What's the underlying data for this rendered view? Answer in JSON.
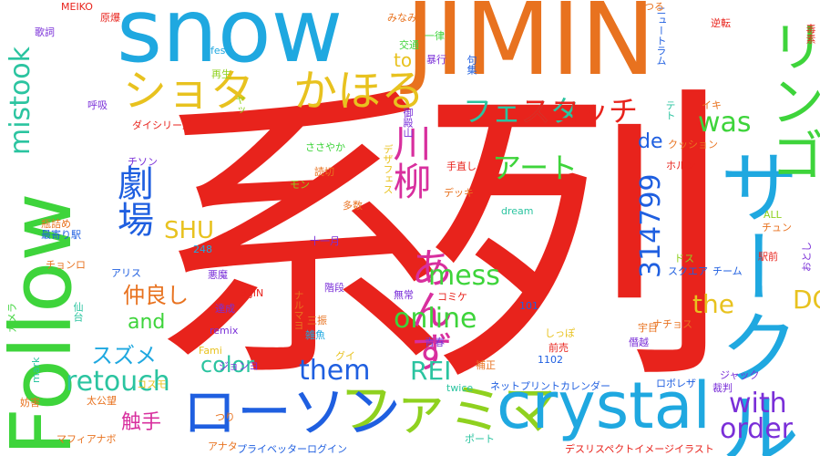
{
  "colors": {
    "red": "#e8231c",
    "orange": "#e8721f",
    "yellow": "#e8c21f",
    "lime": "#8fd11f",
    "green": "#3ed43b",
    "teal": "#2bc4a0",
    "cyan": "#1fa8e0",
    "blue": "#1f5fe0",
    "purple": "#7a2fd8",
    "magenta": "#d82f9e"
  },
  "words": [
    "系列",
    "Follow",
    "サークル",
    "snow",
    "JIMIN",
    "ファミマ",
    "crystal",
    "ローソン",
    "フェスタ",
    "リンゴ",
    "ショタ",
    "かほる",
    "川柳",
    "劇場",
    "アート",
    "あんず",
    "314799",
    "mistook",
    "retouch",
    "with",
    "order",
    "online",
    "them",
    "スコッチ",
    "mess",
    "was",
    "SHU",
    "仲良し",
    "スズメ",
    "color",
    "and",
    "REI",
    "DC",
    "the",
    "de",
    "to",
    "触手",
    "MEIKO",
    "原爆",
    "みなみ",
    "歌詞",
    "ufes",
    "交通",
    "暴行",
    "一律",
    "再生",
    "呼吸",
    "ヤッ",
    "御殿山",
    "ダイシリーズ",
    "チソン",
    "ささやか",
    "読切",
    "手直し",
    "クッション",
    "ホルン",
    "モン",
    "デッキ",
    "デザフェス",
    "瓶詰め",
    "最寄り駅",
    "チョンロ",
    "248",
    "十一月",
    "多数",
    "dream",
    "ALL",
    "チュン",
    "駅前",
    "アリス",
    "悪魔",
    "階段",
    "スクエア",
    "チーム",
    "達成",
    "ナルマヨ",
    "101",
    "仙台",
    "コミケ",
    "無常",
    "カメラ",
    "remix",
    "三振",
    "雑魚",
    "宇目",
    "ナチョス",
    "Fami",
    "グイ",
    "青春",
    "前売",
    "しっぽ",
    "僭越",
    "1102",
    "補正",
    "mark",
    "ジョンヨ",
    "ロボレザ",
    "ジャック",
    "コスモ",
    "太公望",
    "twice",
    "ネットプリントカレンダー",
    "裁判",
    "妨害",
    "つり",
    "マフィアナボ",
    "アナタ",
    "プライベッターログイン",
    "ポート",
    "デスリスペクトイメージイラスト",
    "逆転",
    "ニュートラム",
    "毒素",
    "テト",
    "イキ",
    "つる",
    "句集",
    "おとし",
    "3 JIN",
    "ドス"
  ]
}
